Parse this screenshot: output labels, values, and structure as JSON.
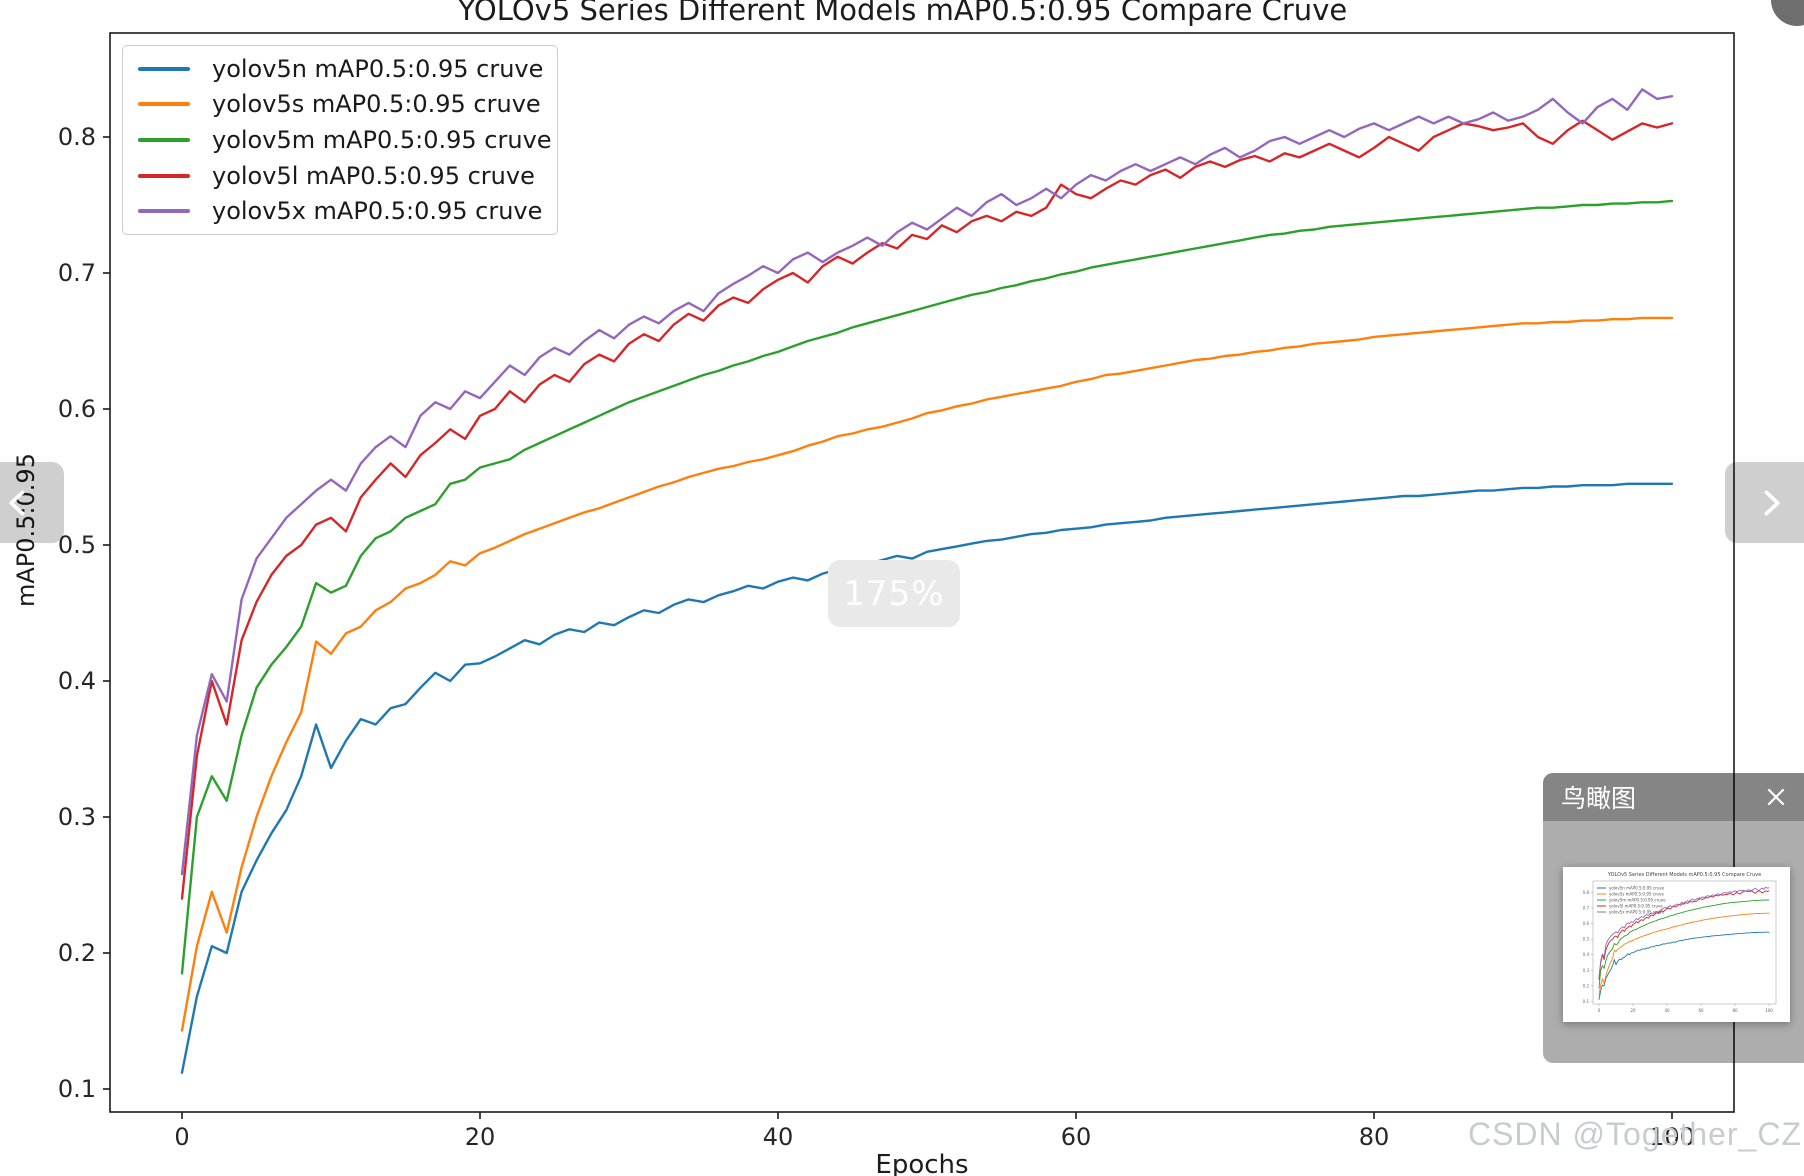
{
  "viewer": {
    "zoom_badge": "175%",
    "watermark": "CSDN @Together_CZ",
    "nav": {
      "prev_icon": "chevron-left",
      "next_icon": "chevron-right"
    },
    "minimap": {
      "title": "鸟瞰图",
      "close_icon": "close"
    }
  },
  "chart_data": {
    "type": "line",
    "title": "YOLOv5 Series Different Models mAP0.5:0.95 Compare Cruve",
    "xlabel": "Epochs",
    "ylabel": "mAP0.5:0.95",
    "legend_position": "upper left",
    "grid": false,
    "xlim": [
      -5,
      104
    ],
    "ylim": [
      0.083,
      0.876
    ],
    "x_ticks": [
      0,
      20,
      40,
      60,
      80,
      100
    ],
    "x_tick_labels": [
      "0",
      "20",
      "40",
      "60",
      "80",
      "100"
    ],
    "y_ticks": [
      0.8,
      0.7,
      0.6,
      0.5,
      0.4,
      0.3,
      0.2,
      0.1
    ],
    "y_tick_labels": [
      "0.8",
      "0.7",
      "0.6",
      "0.5",
      "0.4",
      "0.3",
      "0.2",
      "0.1"
    ],
    "x_start": 0,
    "x_end": 100,
    "x_step": 1,
    "series": [
      {
        "name": "yolov5n",
        "label": "yolov5n mAP0.5:0.95 cruve",
        "color": "#1f77b4",
        "values": [
          0.112,
          0.168,
          0.205,
          0.2,
          0.245,
          0.268,
          0.288,
          0.305,
          0.33,
          0.368,
          0.336,
          0.356,
          0.372,
          0.368,
          0.38,
          0.383,
          0.395,
          0.406,
          0.4,
          0.412,
          0.413,
          0.418,
          0.424,
          0.43,
          0.427,
          0.434,
          0.438,
          0.436,
          0.443,
          0.441,
          0.447,
          0.452,
          0.45,
          0.456,
          0.46,
          0.458,
          0.463,
          0.466,
          0.47,
          0.468,
          0.473,
          0.476,
          0.474,
          0.479,
          0.482,
          0.48,
          0.486,
          0.489,
          0.492,
          0.49,
          0.495,
          0.497,
          0.499,
          0.501,
          0.503,
          0.504,
          0.506,
          0.508,
          0.509,
          0.511,
          0.512,
          0.513,
          0.515,
          0.516,
          0.517,
          0.518,
          0.52,
          0.521,
          0.522,
          0.523,
          0.524,
          0.525,
          0.526,
          0.527,
          0.528,
          0.529,
          0.53,
          0.531,
          0.532,
          0.533,
          0.534,
          0.535,
          0.536,
          0.536,
          0.537,
          0.538,
          0.539,
          0.54,
          0.54,
          0.541,
          0.542,
          0.542,
          0.543,
          0.543,
          0.544,
          0.544,
          0.544,
          0.545,
          0.545,
          0.545,
          0.545
        ]
      },
      {
        "name": "yolov5s",
        "label": "yolov5s mAP0.5:0.95 cruve",
        "color": "#ff7f0e",
        "values": [
          0.143,
          0.205,
          0.245,
          0.215,
          0.263,
          0.3,
          0.33,
          0.355,
          0.377,
          0.429,
          0.42,
          0.435,
          0.44,
          0.452,
          0.458,
          0.468,
          0.472,
          0.478,
          0.488,
          0.485,
          0.494,
          0.498,
          0.503,
          0.508,
          0.512,
          0.516,
          0.52,
          0.524,
          0.527,
          0.531,
          0.535,
          0.539,
          0.543,
          0.546,
          0.55,
          0.553,
          0.556,
          0.558,
          0.561,
          0.563,
          0.566,
          0.569,
          0.573,
          0.576,
          0.58,
          0.582,
          0.585,
          0.587,
          0.59,
          0.593,
          0.597,
          0.599,
          0.602,
          0.604,
          0.607,
          0.609,
          0.611,
          0.613,
          0.615,
          0.617,
          0.62,
          0.622,
          0.625,
          0.626,
          0.628,
          0.63,
          0.632,
          0.634,
          0.636,
          0.637,
          0.639,
          0.64,
          0.642,
          0.643,
          0.645,
          0.646,
          0.648,
          0.649,
          0.65,
          0.651,
          0.653,
          0.654,
          0.655,
          0.656,
          0.657,
          0.658,
          0.659,
          0.66,
          0.661,
          0.662,
          0.663,
          0.663,
          0.664,
          0.664,
          0.665,
          0.665,
          0.666,
          0.666,
          0.667,
          0.667,
          0.667
        ]
      },
      {
        "name": "yolov5m",
        "label": "yolov5m mAP0.5:0.95 cruve",
        "color": "#2ca02c",
        "values": [
          0.185,
          0.3,
          0.33,
          0.312,
          0.36,
          0.395,
          0.412,
          0.425,
          0.44,
          0.472,
          0.465,
          0.47,
          0.492,
          0.505,
          0.51,
          0.52,
          0.525,
          0.53,
          0.545,
          0.548,
          0.557,
          0.56,
          0.563,
          0.57,
          0.575,
          0.58,
          0.585,
          0.59,
          0.595,
          0.6,
          0.605,
          0.609,
          0.613,
          0.617,
          0.621,
          0.625,
          0.628,
          0.632,
          0.635,
          0.639,
          0.642,
          0.646,
          0.65,
          0.653,
          0.656,
          0.66,
          0.663,
          0.666,
          0.669,
          0.672,
          0.675,
          0.678,
          0.681,
          0.684,
          0.686,
          0.689,
          0.691,
          0.694,
          0.696,
          0.699,
          0.701,
          0.704,
          0.706,
          0.708,
          0.71,
          0.712,
          0.714,
          0.716,
          0.718,
          0.72,
          0.722,
          0.724,
          0.726,
          0.728,
          0.729,
          0.731,
          0.732,
          0.734,
          0.735,
          0.736,
          0.737,
          0.738,
          0.739,
          0.74,
          0.741,
          0.742,
          0.743,
          0.744,
          0.745,
          0.746,
          0.747,
          0.748,
          0.748,
          0.749,
          0.75,
          0.75,
          0.751,
          0.751,
          0.752,
          0.752,
          0.753
        ]
      },
      {
        "name": "yolov5l",
        "label": "yolov5l mAP0.5:0.95 cruve",
        "color": "#d62728",
        "values": [
          0.24,
          0.345,
          0.4,
          0.368,
          0.43,
          0.458,
          0.478,
          0.492,
          0.5,
          0.515,
          0.52,
          0.51,
          0.535,
          0.548,
          0.56,
          0.55,
          0.566,
          0.575,
          0.585,
          0.578,
          0.595,
          0.6,
          0.613,
          0.605,
          0.618,
          0.625,
          0.62,
          0.633,
          0.64,
          0.635,
          0.648,
          0.655,
          0.65,
          0.662,
          0.67,
          0.665,
          0.676,
          0.682,
          0.678,
          0.688,
          0.695,
          0.7,
          0.693,
          0.705,
          0.712,
          0.707,
          0.715,
          0.722,
          0.718,
          0.728,
          0.725,
          0.735,
          0.73,
          0.738,
          0.742,
          0.738,
          0.745,
          0.742,
          0.748,
          0.765,
          0.758,
          0.755,
          0.762,
          0.768,
          0.765,
          0.772,
          0.776,
          0.77,
          0.778,
          0.782,
          0.778,
          0.783,
          0.786,
          0.782,
          0.788,
          0.785,
          0.79,
          0.795,
          0.79,
          0.785,
          0.792,
          0.8,
          0.795,
          0.79,
          0.8,
          0.805,
          0.81,
          0.808,
          0.805,
          0.807,
          0.81,
          0.8,
          0.795,
          0.805,
          0.812,
          0.805,
          0.798,
          0.804,
          0.81,
          0.807,
          0.81
        ]
      },
      {
        "name": "yolov5x",
        "label": "yolov5x mAP0.5:0.95 cruve",
        "color": "#9467bd",
        "values": [
          0.258,
          0.36,
          0.405,
          0.385,
          0.46,
          0.49,
          0.505,
          0.52,
          0.53,
          0.54,
          0.548,
          0.54,
          0.56,
          0.572,
          0.58,
          0.572,
          0.595,
          0.605,
          0.6,
          0.613,
          0.608,
          0.62,
          0.632,
          0.625,
          0.638,
          0.645,
          0.64,
          0.65,
          0.658,
          0.652,
          0.662,
          0.668,
          0.663,
          0.672,
          0.678,
          0.672,
          0.685,
          0.692,
          0.698,
          0.705,
          0.7,
          0.71,
          0.715,
          0.708,
          0.715,
          0.72,
          0.726,
          0.72,
          0.73,
          0.737,
          0.732,
          0.74,
          0.748,
          0.742,
          0.752,
          0.758,
          0.75,
          0.755,
          0.762,
          0.755,
          0.765,
          0.772,
          0.768,
          0.775,
          0.78,
          0.775,
          0.78,
          0.785,
          0.78,
          0.787,
          0.792,
          0.785,
          0.79,
          0.797,
          0.8,
          0.795,
          0.8,
          0.805,
          0.8,
          0.806,
          0.81,
          0.805,
          0.81,
          0.815,
          0.81,
          0.815,
          0.81,
          0.813,
          0.818,
          0.812,
          0.815,
          0.82,
          0.828,
          0.818,
          0.81,
          0.822,
          0.828,
          0.82,
          0.835,
          0.828,
          0.83
        ]
      }
    ]
  }
}
